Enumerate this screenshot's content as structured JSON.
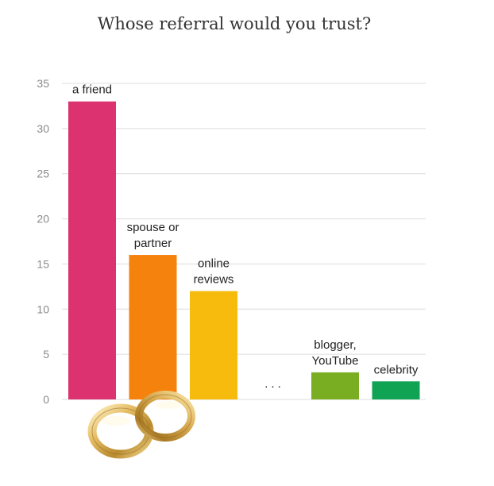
{
  "chart_data": {
    "type": "bar",
    "title": "Whose referral would you trust?",
    "categories": [
      "a friend",
      "spouse or partner",
      "online reviews",
      "",
      "blogger, YouTube",
      "celebrity"
    ],
    "label_lines": [
      [
        "a friend"
      ],
      [
        "spouse or",
        "partner"
      ],
      [
        "online",
        "reviews"
      ],
      [
        "..."
      ],
      [
        "blogger,",
        "YouTube"
      ],
      [
        "celebrity"
      ]
    ],
    "values": [
      33,
      16,
      12,
      null,
      3,
      2
    ],
    "colors": [
      "#dc3370",
      "#f5820d",
      "#f7bb0e",
      null,
      "#79ad22",
      "#10a354"
    ],
    "ylim": [
      0,
      35
    ],
    "yticks": [
      0,
      5,
      10,
      15,
      20,
      25,
      30,
      35
    ],
    "xlabel": "",
    "ylabel": "",
    "grid": true,
    "legend": false
  },
  "decorations": {
    "rings_icon": "wedding-rings-icon"
  }
}
